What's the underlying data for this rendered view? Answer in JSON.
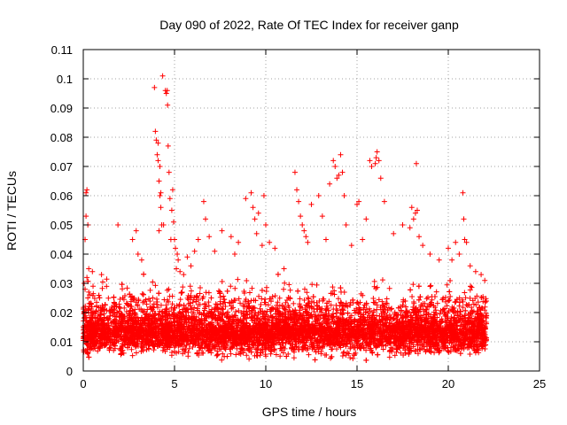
{
  "chart_data": {
    "type": "scatter",
    "title": "Day 090 of 2022, Rate Of TEC Index for receiver ganp",
    "xlabel": "GPS time / hours",
    "ylabel": "ROTI / TECUs",
    "xlim": [
      0,
      25
    ],
    "ylim": [
      0,
      0.11
    ],
    "xticks": [
      "0",
      "5",
      "10",
      "15",
      "20",
      "25"
    ],
    "yticks": [
      "0",
      "0.01",
      "0.02",
      "0.03",
      "0.04",
      "0.05",
      "0.06",
      "0.07",
      "0.08",
      "0.09",
      "0.1",
      "0.11"
    ],
    "grid": true,
    "marker": "plus",
    "color": "#ff0000",
    "series": [
      {
        "x": [
          0.05,
          0.1,
          0.15,
          0.2,
          0.25,
          0.3,
          0.15,
          0.2,
          0.25,
          0.1,
          0.3,
          0.5,
          1.0,
          1.9,
          2.7,
          2.9,
          3.0,
          3.2,
          3.9,
          3.95,
          4.0,
          4.05,
          4.1,
          4.15,
          4.2,
          4.25,
          4.3,
          4.1,
          4.2,
          4.15,
          4.25,
          4.35,
          4.4,
          4.5,
          4.55,
          4.6,
          4.62,
          4.65,
          4.7,
          4.75,
          4.8,
          4.85,
          4.9,
          4.95,
          5.0,
          5.05,
          5.1,
          5.15,
          5.2,
          5.3,
          5.5,
          5.7,
          5.9,
          6.1,
          6.3,
          6.6,
          6.7,
          6.9,
          7.2,
          7.6,
          8.1,
          8.3,
          8.5,
          8.9,
          9.2,
          9.3,
          9.4,
          9.5,
          9.6,
          9.8,
          9.9,
          10.0,
          10.2,
          10.5,
          11.0,
          11.6,
          11.7,
          11.8,
          11.9,
          12.0,
          12.1,
          12.2,
          12.3,
          12.5,
          12.9,
          13.1,
          13.3,
          13.5,
          13.7,
          13.8,
          13.9,
          14.0,
          14.1,
          14.2,
          14.3,
          14.4,
          14.7,
          15.0,
          15.1,
          15.3,
          15.5,
          15.7,
          15.8,
          16.0,
          16.05,
          16.1,
          16.2,
          16.3,
          16.5,
          17.0,
          17.5,
          17.9,
          18.0,
          18.1,
          18.2,
          18.25,
          18.3,
          18.4,
          18.6,
          19.0,
          19.5,
          20.0,
          20.2,
          20.4,
          20.6,
          20.8,
          20.85,
          20.9,
          21.0,
          21.2,
          21.5,
          21.8,
          22.0
        ],
        "y": [
          0.03,
          0.045,
          0.061,
          0.062,
          0.05,
          0.035,
          0.053,
          0.032,
          0.025,
          0.028,
          0.027,
          0.034,
          0.033,
          0.05,
          0.045,
          0.048,
          0.04,
          0.038,
          0.097,
          0.082,
          0.079,
          0.074,
          0.072,
          0.065,
          0.06,
          0.056,
          0.05,
          0.078,
          0.07,
          0.048,
          0.061,
          0.101,
          0.05,
          0.096,
          0.095,
          0.096,
          0.091,
          0.077,
          0.068,
          0.059,
          0.045,
          0.055,
          0.062,
          0.051,
          0.045,
          0.042,
          0.035,
          0.04,
          0.038,
          0.034,
          0.033,
          0.039,
          0.036,
          0.041,
          0.045,
          0.058,
          0.052,
          0.046,
          0.041,
          0.048,
          0.046,
          0.04,
          0.044,
          0.059,
          0.061,
          0.056,
          0.052,
          0.047,
          0.054,
          0.043,
          0.06,
          0.05,
          0.044,
          0.042,
          0.035,
          0.068,
          0.062,
          0.058,
          0.053,
          0.05,
          0.048,
          0.046,
          0.044,
          0.057,
          0.06,
          0.053,
          0.045,
          0.064,
          0.072,
          0.07,
          0.066,
          0.067,
          0.074,
          0.068,
          0.06,
          0.05,
          0.043,
          0.057,
          0.058,
          0.045,
          0.052,
          0.072,
          0.07,
          0.071,
          0.073,
          0.075,
          0.072,
          0.066,
          0.058,
          0.047,
          0.05,
          0.049,
          0.056,
          0.052,
          0.054,
          0.071,
          0.055,
          0.046,
          0.043,
          0.04,
          0.038,
          0.042,
          0.038,
          0.044,
          0.04,
          0.061,
          0.052,
          0.045,
          0.044,
          0.036,
          0.034,
          0.033,
          0.031
        ],
        "dense_band": {
          "x_range": [
            0,
            22.1
          ],
          "y_range": [
            0.003,
            0.034
          ],
          "median": 0.014
        }
      }
    ]
  }
}
